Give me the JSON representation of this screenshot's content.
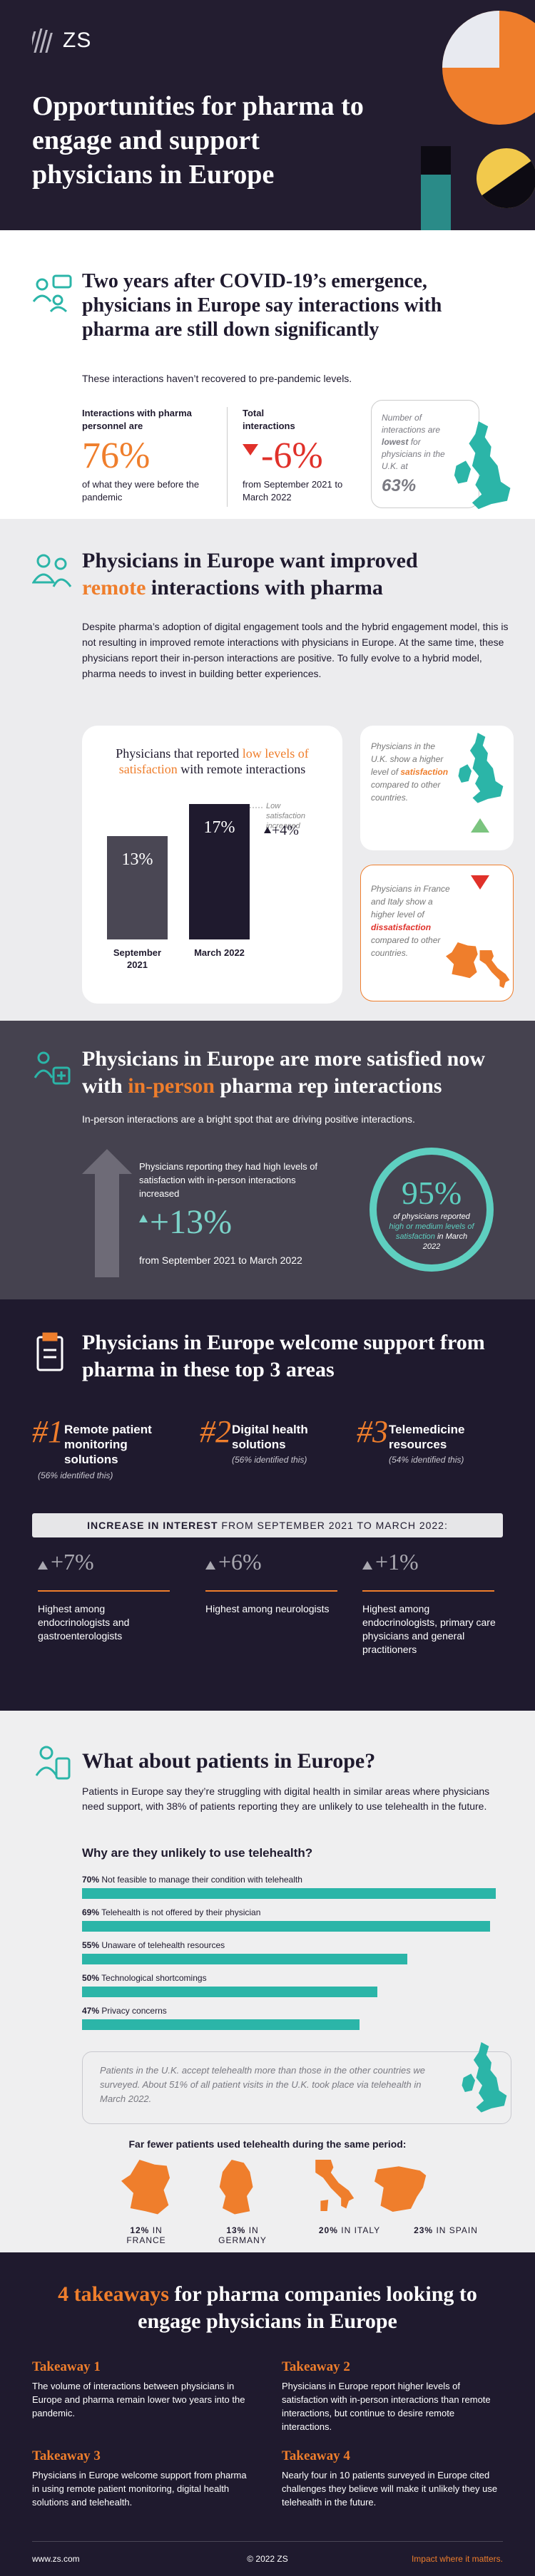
{
  "header": {
    "logo": "ZS",
    "title": "Opportunities for pharma to engage and support physicians in Europe"
  },
  "interactions": {
    "title": "Two years after COVID-19’s emergence, physicians in Europe say interactions with pharma are still down significantly",
    "subtitle": "These interactions haven’t recovered to pre-pandemic levels.",
    "stats": [
      {
        "label": "Interactions with pharma personnel are",
        "value": "76%",
        "note": "of what they were before the pandemic"
      },
      {
        "label": "Total interactions",
        "value": "-6%",
        "note": "from September 2021 to March 2022"
      }
    ],
    "uk": {
      "before": "Number of interactions are",
      "highlight": "lowest",
      "after": "for physicians in the U.K. at",
      "value": "63%"
    }
  },
  "remote": {
    "title_before": "Physicians in Europe want improved",
    "title_highlight": "remote",
    "title_after": "interactions with pharma",
    "paragraph": "Despite pharma’s adoption of digital engagement tools and the hybrid engagement model, this is not resulting in improved remote interactions with physicians in Europe. At the same time, these physicians report their in-person interactions are positive. To fully evolve to a hybrid model, pharma needs to invest in building better experiences.",
    "chart": {
      "title_before": "Physicians that reported",
      "title_highlight": "low levels of satisfaction",
      "title_after": "with remote interactions",
      "categories": [
        "September 2021",
        "March 2022"
      ],
      "values": [
        13,
        17
      ],
      "value_labels": [
        "13%",
        "17%"
      ],
      "annotation": "Low satisfaction increased",
      "change": "+4%"
    },
    "uk_box": {
      "before": "Physicians in the U.K. show a higher level of",
      "highlight": "satisfaction",
      "after": "compared to other countries."
    },
    "fr_it_box": {
      "before": "Physicians in France and Italy show a higher level of",
      "highlight": "dissatisfaction",
      "after": "compared to other countries."
    }
  },
  "in_person": {
    "title_before": "Physicians in Europe are more satisfied now with",
    "title_highlight": "in-person",
    "title_after": "pharma rep interactions",
    "subtitle": "In-person interactions are a bright spot that are driving positive interactions.",
    "increase_label": "Physicians reporting they had high levels of satisfaction with in-person interactions increased",
    "increase_value": "+13%",
    "increase_period": "from September 2021 to March 2022",
    "circle_value": "95%",
    "circle_before": "of physicians reported",
    "circle_highlight": "high or medium levels of satisfaction",
    "circle_after": "in March 2022"
  },
  "support": {
    "title": "Physicians in Europe welcome support from pharma in these top 3 areas",
    "areas": [
      {
        "rank": "#1",
        "name": "Remote patient monitoring solutions",
        "share": "(56% identified this)",
        "increase": "+7%",
        "note": "Highest among endocrinologists and gastroenterologists"
      },
      {
        "rank": "#2",
        "name": "Digital health solutions",
        "share": "(56% identified this)",
        "increase": "+6%",
        "note": "Highest among neurologists"
      },
      {
        "rank": "#3",
        "name": "Telemedicine resources",
        "share": "(54% identified this)",
        "increase": "+1%",
        "note": "Highest among endocrinologists, primary care physicians and general practitioners"
      }
    ],
    "banner_bold": "INCREASE IN INTEREST",
    "banner_rest": "FROM SEPTEMBER 2021 TO MARCH 2022:"
  },
  "patients": {
    "title": "What about patients in Europe?",
    "paragraph": "Patients in Europe say they’re struggling with digital health in similar areas where physicians need support, with 38% of patients reporting they are unlikely to use telehealth in the future.",
    "chart": {
      "title": "Why are they unlikely to use telehealth?",
      "categories": [
        "Not feasible to manage their condition with telehealth",
        "Telehealth is not offered by their physician",
        "Unaware of telehealth resources",
        "Technological shortcomings",
        "Privacy concerns"
      ],
      "values": [
        70,
        69,
        55,
        50,
        47
      ],
      "value_labels": [
        "70%",
        "69%",
        "55%",
        "50%",
        "47%"
      ]
    },
    "uk_note": "Patients in the U.K. accept telehealth more than those in the other countries we surveyed. About 51% of all patient visits in the U.K. took place via telehealth in March 2022.",
    "usage_title": "Far fewer patients used telehealth during the same period:",
    "usage": [
      {
        "value": "12%",
        "country": "IN FRANCE"
      },
      {
        "value": "13%",
        "country": "IN GERMANY"
      },
      {
        "value": "20%",
        "country": "IN ITALY"
      },
      {
        "value": "23%",
        "country": "IN SPAIN"
      }
    ]
  },
  "takeaways": {
    "title_highlight": "4 takeaways",
    "title_rest": "for pharma companies looking to engage physicians in Europe",
    "items": [
      {
        "heading": "Takeaway 1",
        "text": "The volume of interactions between physicians in Europe and pharma remain lower two years into the pandemic."
      },
      {
        "heading": "Takeaway 2",
        "text": "Physicians in Europe report higher levels of satisfaction with in-person interactions than remote interactions, but continue to desire remote interactions."
      },
      {
        "heading": "Takeaway 3",
        "text": "Physicians in Europe welcome support from pharma in using remote patient monitoring, digital health solutions and telehealth."
      },
      {
        "heading": "Takeaway 4",
        "text": "Nearly four in 10 patients surveyed in Europe cited challenges they believe will make it unlikely they use telehealth in the future."
      }
    ]
  },
  "footer": {
    "url": "www.zs.com",
    "copyright": "© 2022 ZS",
    "tagline": "Impact where it matters."
  }
}
